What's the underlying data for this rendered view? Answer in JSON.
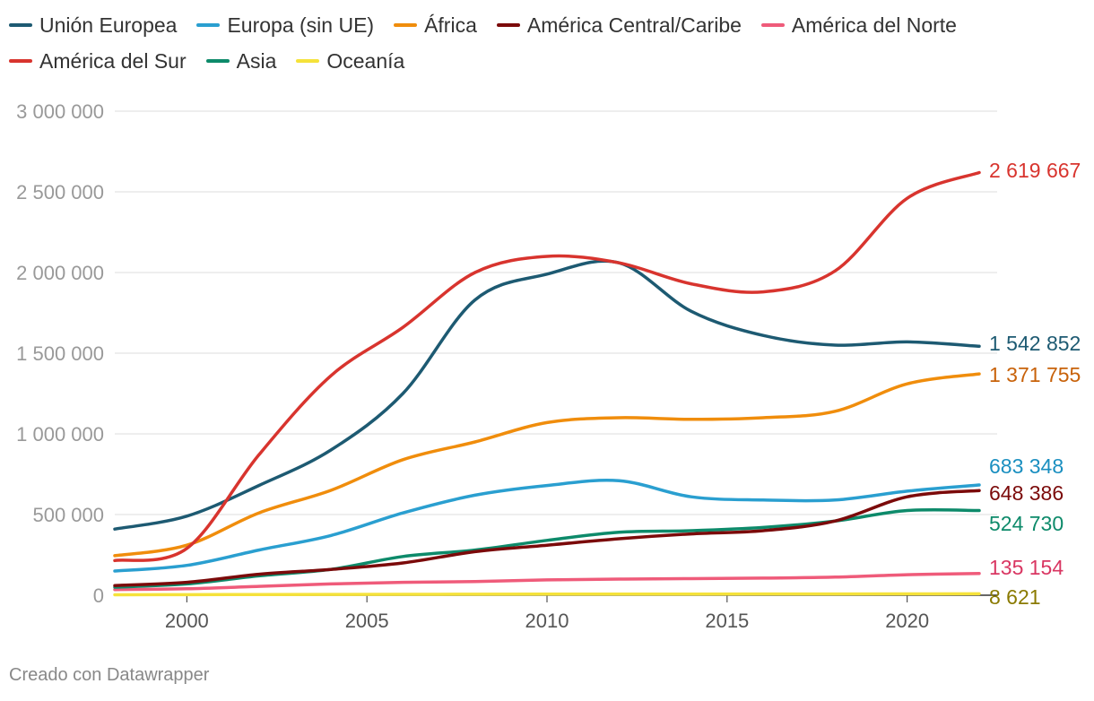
{
  "chart_data": {
    "type": "line",
    "title": "",
    "xlabel": "",
    "ylabel": "",
    "xlim": [
      1998,
      2022
    ],
    "ylim": [
      0,
      3000000
    ],
    "grid": true,
    "legend_position": "top",
    "x": [
      1998,
      2000,
      2002,
      2004,
      2006,
      2008,
      2010,
      2012,
      2014,
      2016,
      2018,
      2020,
      2022
    ],
    "x_ticks": [
      2000,
      2005,
      2010,
      2015,
      2020
    ],
    "y_ticks": [
      0,
      500000,
      1000000,
      1500000,
      2000000,
      2500000,
      3000000
    ],
    "y_tick_labels": [
      "0",
      "500 000",
      "1 000 000",
      "1 500 000",
      "2 000 000",
      "2 500 000",
      "3 000 000"
    ],
    "series": [
      {
        "name": "Unión Europea",
        "color": "#1d5a72",
        "values": [
          410000,
          490000,
          680000,
          900000,
          1250000,
          1830000,
          1990000,
          2060000,
          1760000,
          1610000,
          1550000,
          1570000,
          1542852
        ],
        "end_label": "1 542 852"
      },
      {
        "name": "Europa (sin UE)",
        "color": "#2a9fd0",
        "values": [
          150000,
          185000,
          280000,
          370000,
          510000,
          620000,
          680000,
          710000,
          610000,
          590000,
          590000,
          645000,
          683348
        ],
        "end_label": "683 348"
      },
      {
        "name": "África",
        "color": "#f08d0c",
        "values": [
          245000,
          310000,
          510000,
          650000,
          840000,
          950000,
          1070000,
          1100000,
          1090000,
          1100000,
          1140000,
          1310000,
          1371755
        ],
        "end_label": "1 371 755"
      },
      {
        "name": "América Central/Caribe",
        "color": "#7b0a0a",
        "values": [
          60000,
          80000,
          130000,
          160000,
          200000,
          270000,
          310000,
          350000,
          380000,
          400000,
          460000,
          610000,
          648386
        ],
        "end_label": "648 386"
      },
      {
        "name": "América del Norte",
        "color": "#ef5b7a",
        "values": [
          35000,
          40000,
          55000,
          70000,
          80000,
          85000,
          95000,
          100000,
          103000,
          106000,
          112000,
          127000,
          135154
        ],
        "end_label": "135 154"
      },
      {
        "name": "América del Sur",
        "color": "#d8342e",
        "values": [
          215000,
          290000,
          870000,
          1360000,
          1660000,
          2000000,
          2100000,
          2060000,
          1930000,
          1880000,
          2010000,
          2460000,
          2619667
        ],
        "end_label": "2 619 667"
      },
      {
        "name": "Asia",
        "color": "#0d8a6a",
        "values": [
          50000,
          70000,
          120000,
          160000,
          240000,
          280000,
          340000,
          390000,
          400000,
          420000,
          460000,
          525000,
          524730
        ],
        "end_label": "524 730"
      },
      {
        "name": "Oceanía",
        "color": "#f5e23a",
        "values": [
          3000,
          3500,
          4500,
          5000,
          5500,
          6000,
          6500,
          7000,
          7200,
          7500,
          8000,
          8400,
          8621
        ],
        "end_label": "8 621"
      }
    ],
    "end_label_colors": {
      "Unión Europea": "#1d5a72",
      "Europa (sin UE)": "#1a8fc0",
      "África": "#c8620a",
      "América Central/Caribe": "#7b0a0a",
      "América del Norte": "#d93662",
      "América del Sur": "#d8342e",
      "Asia": "#0d8a6a",
      "Oceanía": "#8a7a00"
    }
  },
  "footer": {
    "credit": "Creado con Datawrapper"
  }
}
